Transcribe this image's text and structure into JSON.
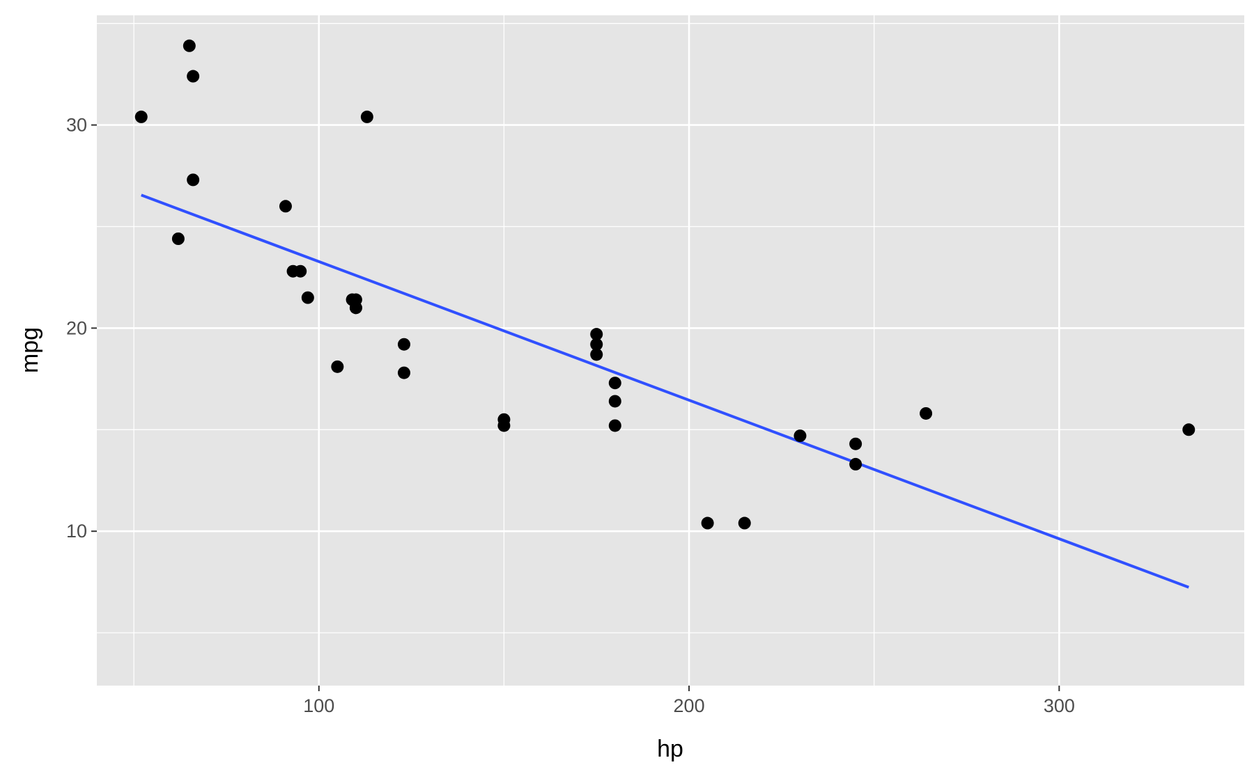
{
  "chart_data": {
    "type": "scatter",
    "title": "",
    "xlabel": "hp",
    "ylabel": "mpg",
    "xlim": [
      40,
      350
    ],
    "ylim": [
      2.4,
      35.4
    ],
    "x_ticks": [
      100,
      200,
      300
    ],
    "x_tick_labels": [
      "100",
      "200",
      "300"
    ],
    "y_ticks": [
      10,
      20,
      30
    ],
    "y_tick_labels": [
      "10",
      "20",
      "30"
    ],
    "grid": true,
    "legend": "none",
    "colors": {
      "panel": "#e5e5e5",
      "grid": "#ffffff",
      "point": "#000000",
      "fit_line": "#3050ff",
      "tick": "#333333"
    },
    "points": {
      "x": [
        110,
        110,
        93,
        110,
        175,
        105,
        245,
        62,
        95,
        123,
        123,
        180,
        180,
        180,
        205,
        215,
        230,
        66,
        52,
        65,
        97,
        150,
        150,
        245,
        175,
        66,
        91,
        113,
        264,
        175,
        335,
        109
      ],
      "y": [
        21.0,
        21.0,
        22.8,
        21.4,
        18.7,
        18.1,
        14.3,
        24.4,
        22.8,
        19.2,
        17.8,
        16.4,
        17.3,
        15.2,
        10.4,
        10.4,
        14.7,
        32.4,
        30.4,
        33.9,
        21.5,
        15.5,
        15.2,
        13.3,
        19.2,
        27.3,
        26.0,
        30.4,
        15.8,
        19.7,
        15.0,
        21.4
      ]
    },
    "fit_line": {
      "x": [
        52,
        335
      ],
      "y": [
        26.55,
        7.24
      ]
    }
  }
}
